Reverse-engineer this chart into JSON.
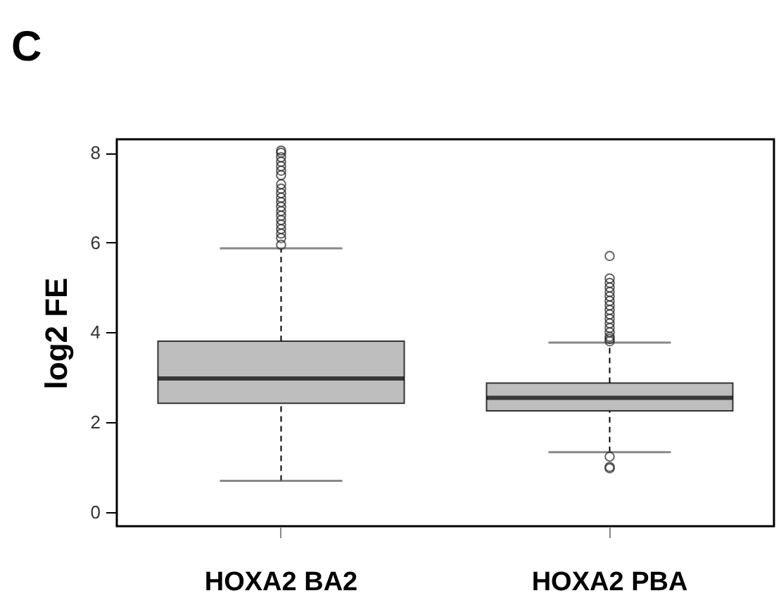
{
  "chart_data": {
    "type": "box",
    "title": "C",
    "ylabel": "log2 FE",
    "categories": [
      "HOXA2 BA2",
      "HOXA2 PBA"
    ],
    "boxes": [
      {
        "low": 0.69,
        "q1": 2.42,
        "median": 2.97,
        "q3": 3.8,
        "high": 5.87,
        "outliers": [
          5.95,
          6.1,
          6.2,
          6.3,
          6.4,
          6.5,
          6.6,
          6.7,
          6.8,
          6.9,
          7.0,
          7.1,
          7.2,
          7.3,
          7.5,
          7.6,
          7.7,
          7.8,
          7.9,
          8.0,
          8.05
        ]
      },
      {
        "low": 1.33,
        "q1": 2.25,
        "median": 2.54,
        "q3": 2.87,
        "high": 3.77,
        "outliers": [
          0.97,
          1.0,
          1.23,
          3.8,
          3.85,
          3.9,
          4.0,
          4.1,
          4.2,
          4.3,
          4.4,
          4.5,
          4.6,
          4.7,
          4.8,
          4.9,
          5.0,
          5.1,
          5.2,
          5.7
        ]
      }
    ],
    "color": "#bebebe",
    "ylim": [
      -0.32,
      8.3
    ],
    "yticks": [
      0,
      2,
      4,
      6,
      8
    ],
    "grid": false
  }
}
